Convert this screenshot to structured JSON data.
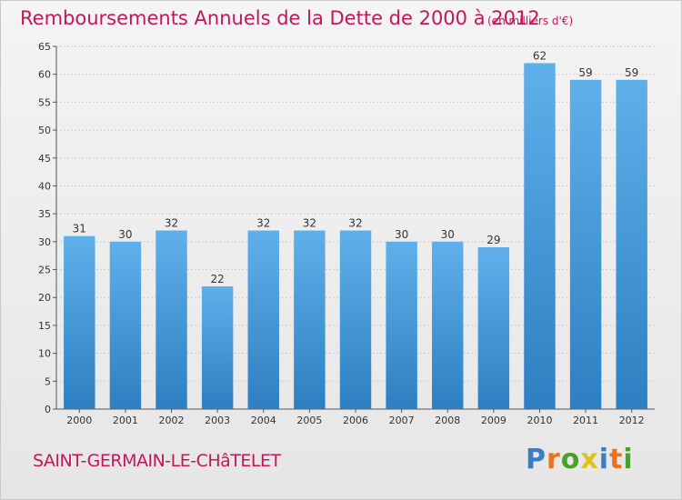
{
  "title": "Remboursements Annuels de la Dette de 2000 à 2012",
  "subtitle": "(en milliers d'€)",
  "city": "SAINT-GERMAIN-LE-CHâTELET",
  "logo": {
    "text": "Proxiti",
    "letters": [
      {
        "char": "P",
        "color": "#3b7dc4"
      },
      {
        "char": "r",
        "color": "#e8731c"
      },
      {
        "char": "o",
        "color": "#4aa02c"
      },
      {
        "char": "x",
        "color": "#e0c21a"
      },
      {
        "char": "i",
        "color": "#3b7dc4"
      },
      {
        "char": "t",
        "color": "#e8731c"
      },
      {
        "char": "i",
        "color": "#4aa02c"
      }
    ]
  },
  "colors": {
    "title": "#c2185b",
    "bar_top": "#5fb0ea",
    "bar_bottom": "#2d7fc1",
    "grid": "#cfcfcf",
    "axis": "#555555"
  },
  "chart_data": {
    "type": "bar",
    "categories": [
      "2000",
      "2001",
      "2002",
      "2003",
      "2004",
      "2005",
      "2006",
      "2007",
      "2008",
      "2009",
      "2010",
      "2011",
      "2012"
    ],
    "values": [
      31,
      30,
      32,
      22,
      32,
      32,
      32,
      30,
      30,
      29,
      62,
      59,
      59
    ],
    "ylim": [
      0,
      65
    ],
    "yticks": [
      0,
      5,
      10,
      15,
      20,
      25,
      30,
      35,
      40,
      45,
      50,
      55,
      60,
      65
    ],
    "grid": true,
    "data_labels": true
  }
}
